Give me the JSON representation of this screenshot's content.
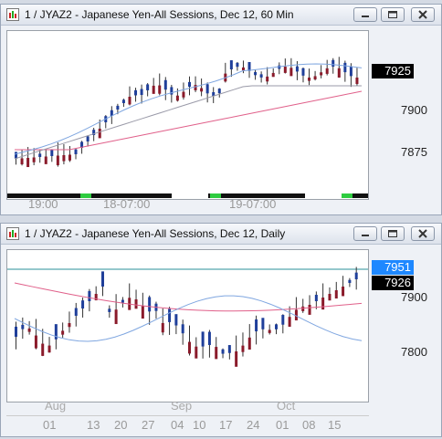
{
  "top_window": {
    "title": "1 / JYAZ2 - Japanese Yen-All Sessions, Dec 12, 60 Min",
    "y_labels": [
      "7900",
      "7875"
    ],
    "price_box": "7925",
    "x_labels": [
      "19:00",
      "18-07:00",
      "19-07:00"
    ]
  },
  "bottom_window": {
    "title": "1 / JYAZ2 - Japanese Yen-All Sessions, Dec 12, Daily",
    "y_labels": [
      "7900",
      "7800"
    ],
    "price_boxes": [
      "7951",
      "7926"
    ],
    "month_labels": [
      "Aug",
      "Sep",
      "Oct"
    ],
    "day_labels": [
      "01",
      "13",
      "20",
      "27",
      "04",
      "10",
      "17",
      "24",
      "01",
      "08",
      "15"
    ]
  },
  "colors": {
    "up_candle": "#1f3f9a",
    "down_candle": "#8a1a2a",
    "slow_ma": "#e0608a",
    "fast_ma": "#7fa6e0",
    "mid_ma": "#9a9aa8",
    "resistance_line": "#2a8f9a",
    "price_box_bg": "#000000",
    "price_box_alt_bg": "#1e88ff",
    "session_bar_green": "#2ecc40"
  },
  "icons": [
    "chart-window-icon",
    "minimize-icon",
    "restore-icon",
    "close-icon"
  ]
}
